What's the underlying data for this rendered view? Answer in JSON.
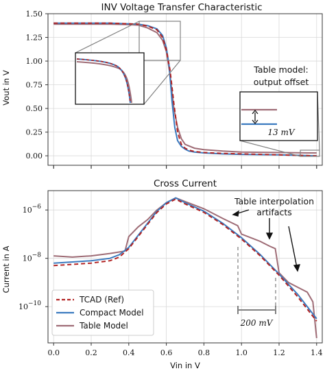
{
  "colors": {
    "tcad": "#b22222",
    "compact": "#3a7abf",
    "table": "#9e6b75"
  },
  "chart_data": [
    {
      "type": "line",
      "title": "INV Voltage Transfer Characteristic",
      "xlabel": "",
      "ylabel": "Vout in V",
      "xlim": [
        -0.03,
        1.43
      ],
      "ylim": [
        -0.1,
        1.5
      ],
      "y_ticks": [
        "0.00",
        "0.25",
        "0.50",
        "0.75",
        "1.00",
        "1.25",
        "1.50"
      ],
      "grid": true,
      "series": [
        {
          "name": "TCAD (Ref)",
          "style": "dashed",
          "x": [
            0,
            0.3,
            0.45,
            0.5,
            0.55,
            0.58,
            0.6,
            0.62,
            0.64,
            0.66,
            0.68,
            0.7,
            0.72,
            0.75,
            0.8,
            0.9,
            1.0,
            1.2,
            1.4
          ],
          "y": [
            1.4,
            1.4,
            1.39,
            1.37,
            1.33,
            1.25,
            1.12,
            0.9,
            0.55,
            0.25,
            0.12,
            0.08,
            0.06,
            0.045,
            0.035,
            0.025,
            0.02,
            0.01,
            0.0
          ]
        },
        {
          "name": "Compact Model",
          "style": "solid",
          "x": [
            0,
            0.3,
            0.45,
            0.5,
            0.55,
            0.58,
            0.6,
            0.615,
            0.63,
            0.645,
            0.66,
            0.68,
            0.7,
            0.72,
            0.75,
            0.8,
            0.9,
            1.0,
            1.2,
            1.4
          ],
          "y": [
            1.4,
            1.4,
            1.39,
            1.375,
            1.34,
            1.27,
            1.14,
            0.95,
            0.58,
            0.3,
            0.16,
            0.1,
            0.07,
            0.05,
            0.04,
            0.03,
            0.02,
            0.015,
            0.01,
            0.0
          ]
        },
        {
          "name": "Table Model",
          "style": "solid",
          "x": [
            0,
            0.3,
            0.4,
            0.45,
            0.5,
            0.55,
            0.58,
            0.6,
            0.62,
            0.64,
            0.66,
            0.68,
            0.7,
            0.75,
            0.8,
            0.9,
            1.0,
            1.2,
            1.35,
            1.4
          ],
          "y": [
            1.39,
            1.39,
            1.385,
            1.38,
            1.35,
            1.3,
            1.22,
            1.1,
            0.85,
            0.5,
            0.3,
            0.18,
            0.12,
            0.08,
            0.065,
            0.05,
            0.04,
            0.035,
            0.03,
            0.03
          ]
        }
      ],
      "annotations": [
        "Table model:",
        "output offset",
        "13 mV"
      ]
    },
    {
      "type": "line",
      "title": "Cross Current",
      "xlabel": "Vin in V",
      "ylabel": "Current in A",
      "xlim": [
        -0.03,
        1.43
      ],
      "log_y": true,
      "ylim_exp": [
        -11.5,
        -5.2
      ],
      "y_tick_exponents": [
        -10,
        -8,
        -6
      ],
      "x_ticks": [
        "0.0",
        "0.2",
        "0.4",
        "0.6",
        "0.8",
        "1.0",
        "1.2",
        "1.4"
      ],
      "grid": true,
      "legend_position": "bottom-left",
      "series": [
        {
          "name": "TCAD (Ref)",
          "style": "dashed",
          "x": [
            0,
            0.1,
            0.2,
            0.3,
            0.35,
            0.4,
            0.45,
            0.5,
            0.55,
            0.6,
            0.65,
            0.7,
            0.8,
            0.9,
            1.0,
            1.1,
            1.2,
            1.3,
            1.4
          ],
          "log_y": [
            -8.3,
            -8.25,
            -8.2,
            -8.1,
            -7.95,
            -7.6,
            -7.1,
            -6.6,
            -6.1,
            -5.75,
            -5.55,
            -5.75,
            -6.1,
            -6.6,
            -7.2,
            -7.9,
            -8.7,
            -9.6,
            -10.6
          ]
        },
        {
          "name": "Compact Model",
          "style": "solid",
          "x": [
            0,
            0.1,
            0.2,
            0.3,
            0.35,
            0.4,
            0.45,
            0.5,
            0.55,
            0.6,
            0.65,
            0.7,
            0.8,
            0.9,
            1.0,
            1.1,
            1.2,
            1.3,
            1.4
          ],
          "log_y": [
            -8.2,
            -8.15,
            -8.1,
            -8.0,
            -7.85,
            -7.55,
            -7.05,
            -6.55,
            -6.05,
            -5.7,
            -5.5,
            -5.7,
            -6.05,
            -6.55,
            -7.15,
            -7.85,
            -8.65,
            -9.5,
            -10.5
          ]
        },
        {
          "name": "Table Model",
          "style": "solid",
          "x": [
            0,
            0.1,
            0.2,
            0.3,
            0.38,
            0.4,
            0.45,
            0.5,
            0.55,
            0.6,
            0.65,
            0.7,
            0.8,
            0.9,
            0.98,
            1.0,
            1.05,
            1.1,
            1.15,
            1.18,
            1.2,
            1.25,
            1.3,
            1.35,
            1.38,
            1.4
          ],
          "log_y": [
            -7.9,
            -7.95,
            -7.9,
            -7.8,
            -7.7,
            -7.1,
            -6.7,
            -6.4,
            -6.0,
            -5.7,
            -5.5,
            -5.65,
            -5.95,
            -6.35,
            -6.65,
            -7.0,
            -7.15,
            -7.3,
            -7.5,
            -7.6,
            -8.6,
            -9.0,
            -9.2,
            -9.4,
            -9.8,
            -11.3
          ]
        }
      ],
      "annotations": [
        "Table interpolation",
        "artifacts",
        "200 mV"
      ]
    }
  ],
  "legend": [
    {
      "label": "TCAD (Ref)",
      "style": "dashed"
    },
    {
      "label": "Compact Model",
      "style": "solid"
    },
    {
      "label": "Table Model",
      "style": "solid"
    }
  ]
}
